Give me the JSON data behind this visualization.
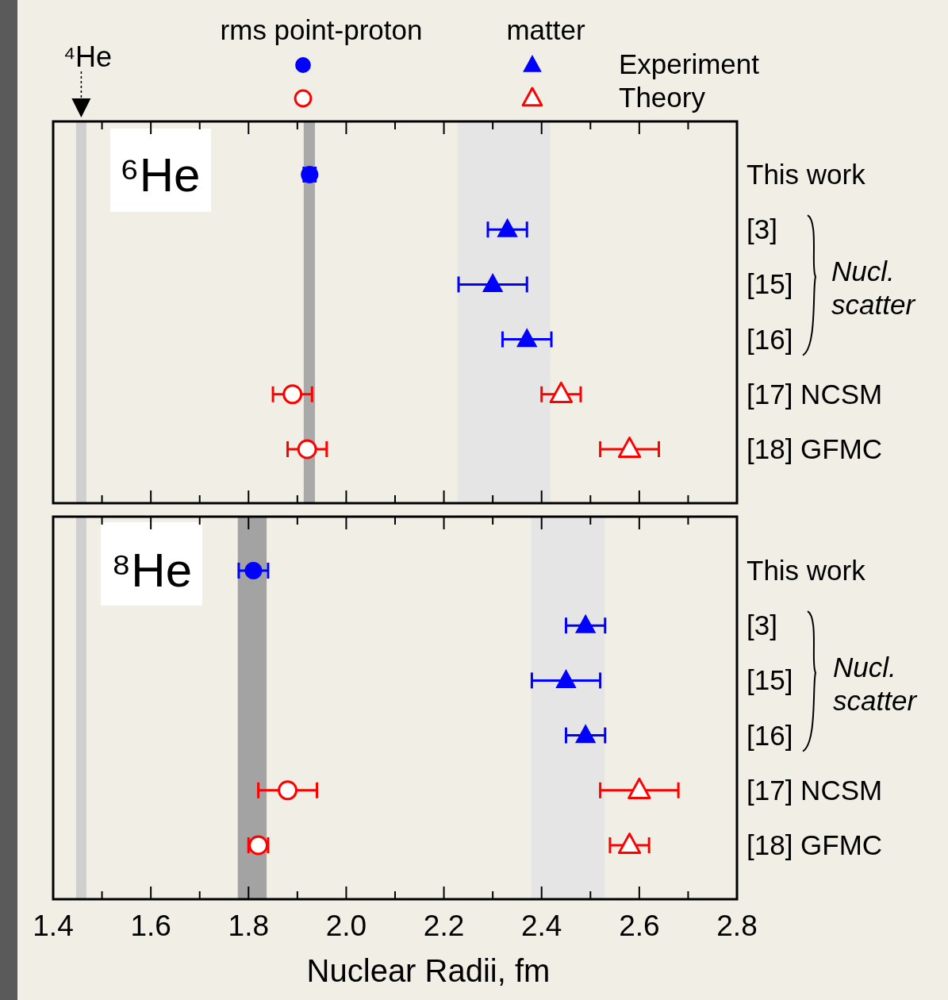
{
  "chart_data": [
    {
      "type": "scatter",
      "orientation": "horizontal",
      "title": "⁶He",
      "categories": [
        "This work",
        "[3]",
        "[15]",
        "[16]",
        "[17] NCSM",
        "[18] GFMC"
      ],
      "xlim": [
        1.4,
        2.8
      ],
      "xticks": [
        1.4,
        {
          "value": 1.5,
          "label": null
        },
        1.6,
        {
          "value": 1.7,
          "label": null
        },
        1.8,
        {
          "value": 1.9,
          "label": null
        },
        2,
        {
          "value": 2.1,
          "label": null
        },
        2.2,
        {
          "value": 2.3,
          "label": null
        },
        2.4,
        {
          "value": 2.5,
          "label": null
        },
        2.6,
        {
          "value": 2.7,
          "label": null
        },
        2.8
      ],
      "tick_labels": "y",
      "legend": "top",
      "series": [
        {
          "name": "Experiment",
          "color": "#0000ff",
          "marker": "circle",
          "values": [
            1.925,
            null,
            null,
            null,
            null,
            null
          ],
          "errors": [
            0.012,
            null,
            null,
            null,
            null,
            null
          ]
        },
        {
          "color": "#0000ff",
          "marker": "triangle",
          "values": [
            null,
            2.33,
            2.3,
            2.37,
            null,
            null
          ],
          "errors": [
            null,
            0.04,
            0.07,
            0.05,
            null,
            null
          ]
        },
        {
          "name": "Theory",
          "color": "#ff0000",
          "marker": "circle",
          "values": [
            null,
            null,
            null,
            null,
            1.89,
            1.92
          ],
          "errors": [
            null,
            null,
            null,
            null,
            0.04,
            0.04
          ]
        },
        {
          "color": "#ff0000",
          "marker": "triangle",
          "values": [
            null,
            null,
            null,
            null,
            2.44,
            2.58
          ],
          "errors": [
            null,
            null,
            null,
            null,
            0.04,
            0.06
          ]
        }
      ],
      "bands": [
        {
          "axis": "x",
          "from": 1.447,
          "to": 1.468,
          "label": "⁴He",
          "color": "#cfcfcf"
        },
        {
          "axis": "x",
          "from": 1.913,
          "to": 1.936,
          "color": "#a9a9a9"
        },
        {
          "axis": "x",
          "from": 2.228,
          "to": 2.418,
          "color": "#e5e5e5"
        }
      ],
      "annotations": [
        "rms point-proton",
        "matter",
        "Nucl. scatter"
      ]
    },
    {
      "type": "scatter",
      "orientation": "horizontal",
      "title": "⁸He",
      "xlabel": "Nuclear Radii, fm",
      "categories": [
        "This work",
        "[3]",
        "[15]",
        "[16]",
        "[17] NCSM",
        "[18] GFMC"
      ],
      "xlim": [
        1.4,
        2.8
      ],
      "xticks": [
        1.4,
        {
          "value": 1.5,
          "label": null
        },
        1.6,
        {
          "value": 1.7,
          "label": null
        },
        1.8,
        {
          "value": 1.9,
          "label": null
        },
        {
          "value": 2.0,
          "label": "2.0"
        },
        {
          "value": 2.1,
          "label": null
        },
        2.2,
        {
          "value": 2.3,
          "label": null
        },
        2.4,
        {
          "value": 2.5,
          "label": null
        },
        2.6,
        {
          "value": 2.7,
          "label": null
        },
        2.8
      ],
      "series": [
        {
          "color": "#0000ff",
          "marker": "circle",
          "values": [
            1.81,
            null,
            null,
            null,
            null,
            null
          ],
          "errors": [
            0.03,
            null,
            null,
            null,
            null,
            null
          ]
        },
        {
          "color": "#0000ff",
          "marker": "triangle",
          "values": [
            null,
            2.49,
            2.45,
            2.49,
            null,
            null
          ],
          "errors": [
            null,
            0.04,
            0.07,
            0.04,
            null,
            null
          ]
        },
        {
          "color": "#ff0000",
          "marker": "circle",
          "values": [
            null,
            null,
            null,
            null,
            1.88,
            1.82
          ],
          "errors": [
            null,
            null,
            null,
            null,
            0.06,
            0.02
          ]
        },
        {
          "color": "#ff0000",
          "marker": "triangle",
          "values": [
            null,
            null,
            null,
            null,
            2.6,
            2.58
          ],
          "errors": [
            null,
            null,
            null,
            null,
            0.08,
            0.04
          ]
        }
      ],
      "bands": [
        {
          "axis": "x",
          "from": 1.447,
          "to": 1.468,
          "color": "#cfcfcf"
        },
        {
          "axis": "x",
          "from": 1.778,
          "to": 1.837,
          "color": "#a3a3a3"
        },
        {
          "axis": "x",
          "from": 2.379,
          "to": 2.529,
          "color": "#e5e5e5"
        }
      ],
      "annotations": [
        "Nucl. scatter"
      ]
    }
  ]
}
